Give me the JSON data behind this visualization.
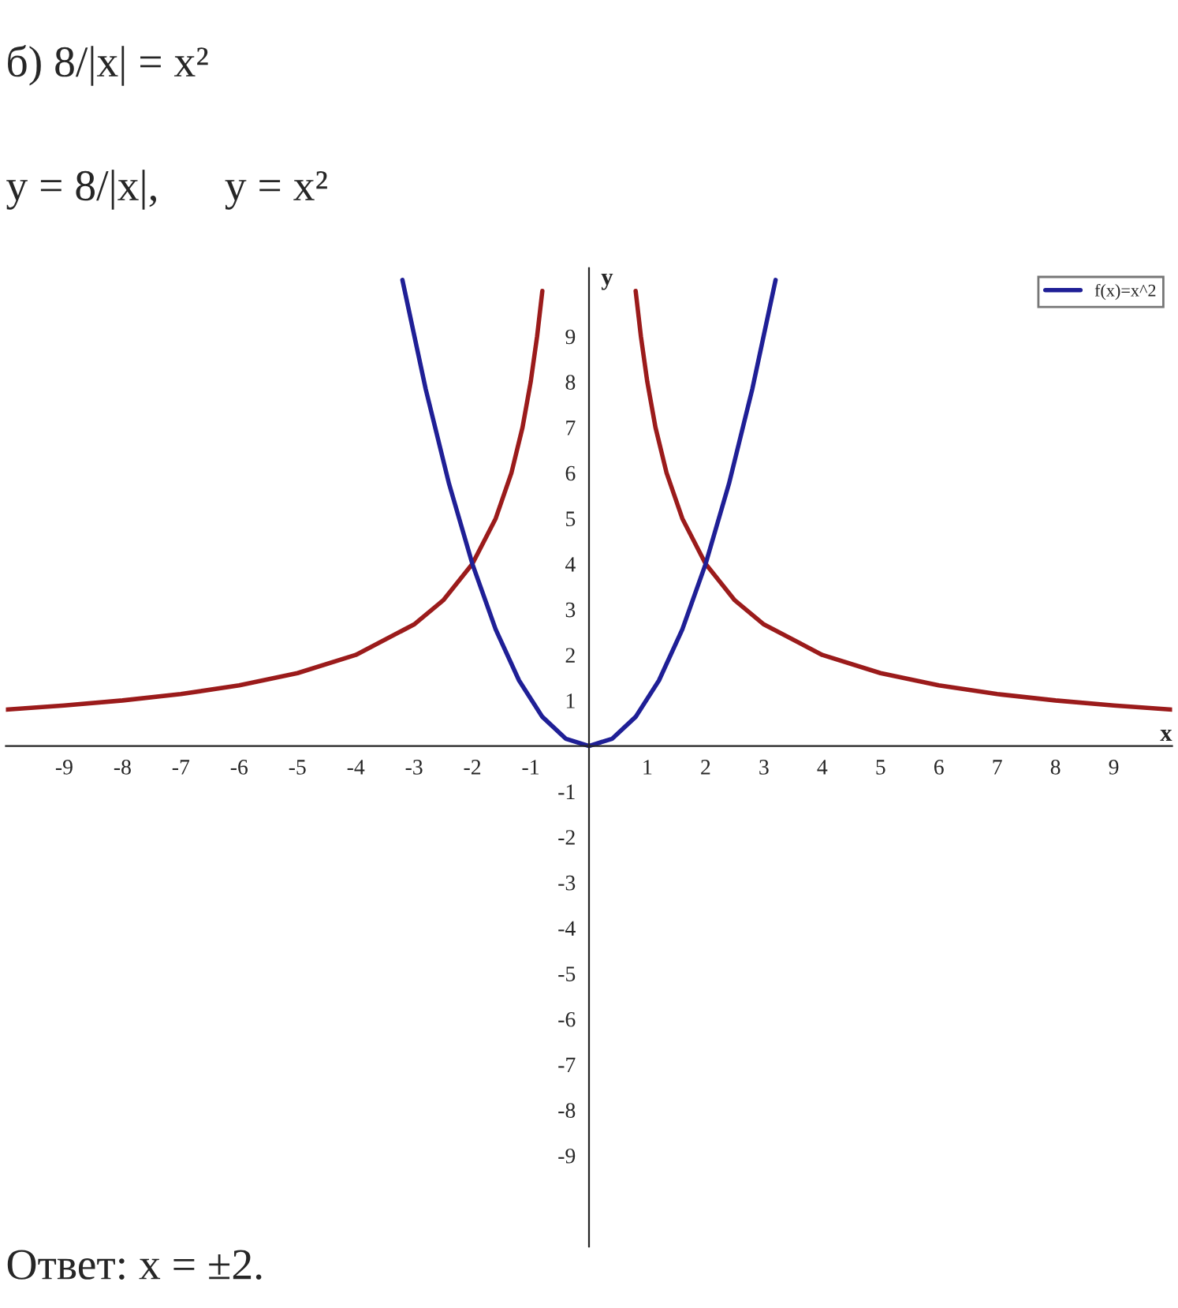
{
  "chart_data": {
    "type": "line",
    "title": "б) 8/|x| = x²",
    "subtitle": "y = 8/|x|,      y = x²",
    "xlabel": "x",
    "ylabel": "y",
    "annotations": [
      "Ответ: x = ±2."
    ],
    "series": [
      {
        "color": "#9b1b1b",
        "x": [
          -10,
          -9,
          -8,
          -7,
          -6,
          -5,
          -4,
          -3,
          -2.5,
          -2,
          -1.6,
          -1.33,
          -1.14,
          -1,
          -0.89,
          -0.8,
          0,
          0.8,
          0.89,
          1,
          1.14,
          1.33,
          1.6,
          2,
          2.5,
          3,
          4,
          5,
          6,
          7,
          8,
          9,
          10
        ],
        "values": [
          0.8,
          0.89,
          1,
          1.14,
          1.33,
          1.6,
          2,
          2.67,
          3.2,
          4,
          5,
          6,
          7,
          8,
          9,
          10,
          null,
          10,
          9,
          8,
          7,
          6,
          5,
          4,
          3.2,
          2.67,
          2,
          1.6,
          1.33,
          1.14,
          1,
          0.89,
          0.8
        ]
      },
      {
        "name": "f(x)=x^2",
        "color": "#1f1f96",
        "x": [
          -3.2,
          -2.8,
          -2.4,
          -2,
          -1.6,
          -1.2,
          -0.8,
          -0.4,
          0,
          0.4,
          0.8,
          1.2,
          1.6,
          2,
          2.4,
          2.8,
          3.2
        ],
        "values": [
          10.24,
          7.84,
          5.76,
          4,
          2.56,
          1.44,
          0.64,
          0.16,
          0,
          0.16,
          0.64,
          1.44,
          2.56,
          4,
          5.76,
          7.84,
          10.24
        ]
      }
    ],
    "xlim": [
      -10,
      10
    ],
    "ylim": [
      -11,
      10.5
    ],
    "xticks": [
      -9,
      -8,
      -7,
      -6,
      -5,
      -4,
      -3,
      -2,
      -1,
      1,
      2,
      3,
      4,
      5,
      6,
      7,
      8,
      9
    ],
    "yticks": [
      -9,
      -8,
      -7,
      -6,
      -5,
      -4,
      -3,
      -2,
      -1,
      1,
      2,
      3,
      4,
      5,
      6,
      7,
      8,
      9
    ],
    "legend": "top right",
    "grid": false,
    "marker": "none",
    "line_style": "solid"
  }
}
